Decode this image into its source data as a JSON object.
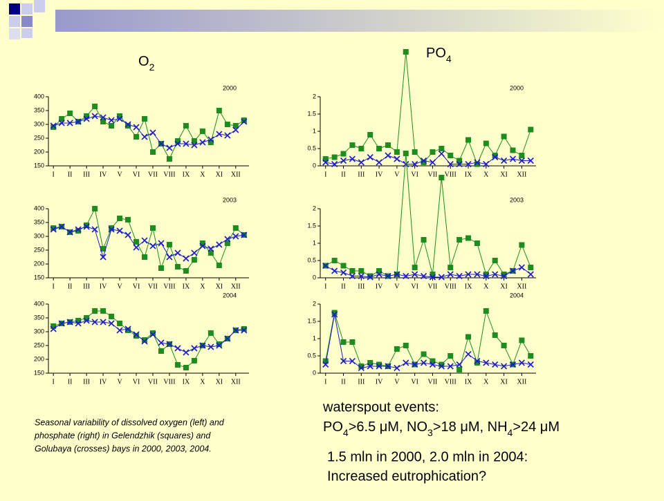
{
  "slide": {
    "o2_heading": [
      "O",
      "2"
    ],
    "po4_heading": [
      "PO",
      "4"
    ],
    "caption": [
      "Seasonal variability of dissolved oxygen (left) and",
      "phosphate (right) in Gelendzhik (squares) and",
      "Golubaya (crosses) bays in 2000, 2003, 2004."
    ],
    "events_title": "waterspout events:",
    "events_line": [
      "PO",
      "4",
      ">6.5 μM, NO",
      "3",
      ">18 μM, NH",
      "4",
      ">24 μM"
    ],
    "conclusion": [
      "1.5 mln in 2000, 2.0 mln in 2004:",
      "Increased eutrophication?"
    ]
  },
  "chart_data": [
    {
      "type": "line",
      "title": "2000",
      "x": [
        1,
        1.5,
        2,
        2.5,
        3,
        3.5,
        4,
        4.5,
        5,
        5.5,
        6,
        6.5,
        7,
        7.5,
        8,
        8.5,
        9,
        9.5,
        10,
        10.5,
        11,
        11.5,
        12,
        12.5
      ],
      "xlim": [
        0.7,
        12.8
      ],
      "xticks": [
        {
          "value": 1,
          "label": "I"
        },
        {
          "value": 2,
          "label": "II"
        },
        {
          "value": 3,
          "label": "III"
        },
        {
          "value": 4,
          "label": "IV"
        },
        {
          "value": 5,
          "label": "V"
        },
        {
          "value": 6,
          "label": "VI"
        },
        {
          "value": 7,
          "label": "VII"
        },
        {
          "value": 8,
          "label": "VIII"
        },
        {
          "value": 9,
          "label": "IX"
        },
        {
          "value": 10,
          "label": "X"
        },
        {
          "value": 11,
          "label": "XI"
        },
        {
          "value": 12,
          "label": "XII"
        }
      ],
      "ylim": [
        150,
        400
      ],
      "yticks": [
        150,
        200,
        250,
        300,
        350,
        400
      ],
      "series": [
        {
          "color": "#1e8c1e",
          "marker": "square",
          "values": [
            290,
            320,
            340,
            310,
            330,
            365,
            310,
            295,
            330,
            295,
            255,
            320,
            200,
            230,
            175,
            240,
            295,
            240,
            275,
            235,
            350,
            300,
            295,
            315
          ]
        },
        {
          "color": "#1c1ccc",
          "marker": "cross",
          "values": [
            295,
            305,
            305,
            310,
            320,
            330,
            325,
            315,
            320,
            300,
            290,
            255,
            270,
            230,
            215,
            230,
            230,
            225,
            235,
            245,
            265,
            260,
            280,
            310
          ]
        }
      ]
    },
    {
      "type": "line",
      "title": "2000",
      "x": [
        1,
        1.5,
        2,
        2.5,
        3,
        3.5,
        4,
        4.5,
        5,
        5.5,
        6,
        6.5,
        7,
        7.5,
        8,
        8.5,
        9,
        9.5,
        10,
        10.5,
        11,
        11.5,
        12,
        12.5
      ],
      "xlim": [
        0.7,
        12.8
      ],
      "xticks": [
        {
          "value": 1,
          "label": "I"
        },
        {
          "value": 2,
          "label": "II"
        },
        {
          "value": 3,
          "label": "III"
        },
        {
          "value": 4,
          "label": "IV"
        },
        {
          "value": 5,
          "label": "V"
        },
        {
          "value": 6,
          "label": "VI"
        },
        {
          "value": 7,
          "label": "VII"
        },
        {
          "value": 8,
          "label": "VIII"
        },
        {
          "value": 9,
          "label": "IX"
        },
        {
          "value": 10,
          "label": "X"
        },
        {
          "value": 11,
          "label": "XI"
        },
        {
          "value": 12,
          "label": "XII"
        }
      ],
      "ylim": [
        0,
        2
      ],
      "yticks": [
        0,
        0.5,
        1,
        1.5,
        2
      ],
      "series": [
        {
          "color": "#1e8c1e",
          "marker": "square",
          "values": [
            0.2,
            0.25,
            0.35,
            0.6,
            0.5,
            0.9,
            0.5,
            0.6,
            0.4,
            3.3,
            0.4,
            0.1,
            0.4,
            0.5,
            0.3,
            0.15,
            0.75,
            0.05,
            0.65,
            0.3,
            0.85,
            0.45,
            0.3,
            1.05
          ]
        },
        {
          "color": "#1c1ccc",
          "marker": "cross",
          "values": [
            0.1,
            0.05,
            0.15,
            0.2,
            0.1,
            0.25,
            0.1,
            0.3,
            0.2,
            0.05,
            0.05,
            0.15,
            0.1,
            0.35,
            0.05,
            0.05,
            0.05,
            0.1,
            0.05,
            0.25,
            0.15,
            0.2,
            0.15,
            0.15
          ]
        }
      ]
    },
    {
      "type": "line",
      "title": "2003",
      "x": [
        1,
        1.5,
        2,
        2.5,
        3,
        3.5,
        4,
        4.5,
        5,
        5.5,
        6,
        6.5,
        7,
        7.5,
        8,
        8.5,
        9,
        9.5,
        10,
        10.5,
        11,
        11.5,
        12,
        12.5
      ],
      "xlim": [
        0.7,
        12.8
      ],
      "xticks": [
        {
          "value": 1,
          "label": "I"
        },
        {
          "value": 2,
          "label": "II"
        },
        {
          "value": 3,
          "label": "III"
        },
        {
          "value": 4,
          "label": "IV"
        },
        {
          "value": 5,
          "label": "V"
        },
        {
          "value": 6,
          "label": "VI"
        },
        {
          "value": 7,
          "label": "VII"
        },
        {
          "value": 8,
          "label": "VIII"
        },
        {
          "value": 9,
          "label": "IX"
        },
        {
          "value": 10,
          "label": "X"
        },
        {
          "value": 11,
          "label": "XI"
        },
        {
          "value": 12,
          "label": "XII"
        }
      ],
      "ylim": [
        150,
        400
      ],
      "yticks": [
        150,
        200,
        250,
        300,
        350,
        400
      ],
      "series": [
        {
          "color": "#1e8c1e",
          "marker": "square",
          "values": [
            330,
            335,
            315,
            320,
            340,
            400,
            255,
            330,
            365,
            360,
            280,
            225,
            330,
            185,
            270,
            190,
            175,
            215,
            275,
            240,
            195,
            275,
            330,
            305
          ]
        },
        {
          "color": "#1c1ccc",
          "marker": "cross",
          "values": [
            325,
            335,
            315,
            325,
            335,
            325,
            225,
            325,
            320,
            305,
            260,
            285,
            265,
            275,
            225,
            240,
            220,
            240,
            265,
            255,
            270,
            290,
            300,
            305
          ]
        }
      ]
    },
    {
      "type": "line",
      "title": "2003",
      "x": [
        1,
        1.5,
        2,
        2.5,
        3,
        3.5,
        4,
        4.5,
        5,
        5.5,
        6,
        6.5,
        7,
        7.5,
        8,
        8.5,
        9,
        9.5,
        10,
        10.5,
        11,
        11.5,
        12,
        12.5
      ],
      "xlim": [
        0.7,
        12.8
      ],
      "xticks": [
        {
          "value": 1,
          "label": "I"
        },
        {
          "value": 2,
          "label": "II"
        },
        {
          "value": 3,
          "label": "III"
        },
        {
          "value": 4,
          "label": "IV"
        },
        {
          "value": 5,
          "label": "V"
        },
        {
          "value": 6,
          "label": "VI"
        },
        {
          "value": 7,
          "label": "VII"
        },
        {
          "value": 8,
          "label": "VIII"
        },
        {
          "value": 9,
          "label": "IX"
        },
        {
          "value": 10,
          "label": "X"
        },
        {
          "value": 11,
          "label": "XI"
        },
        {
          "value": 12,
          "label": "XII"
        }
      ],
      "ylim": [
        0,
        2
      ],
      "yticks": [
        0,
        0.5,
        1,
        1.5,
        2
      ],
      "series": [
        {
          "color": "#1e8c1e",
          "marker": "square",
          "values": [
            0.35,
            0.5,
            0.35,
            0.2,
            0.2,
            0.05,
            0.2,
            0.05,
            0.1,
            3.6,
            0.3,
            1.1,
            0.1,
            2.9,
            0.3,
            1.1,
            1.15,
            1.0,
            0.1,
            0.5,
            0.1,
            0.2,
            0.95,
            0.3
          ]
        },
        {
          "color": "#1c1ccc",
          "marker": "cross",
          "values": [
            0.35,
            0.2,
            0.15,
            0.05,
            0.05,
            0.02,
            0.1,
            0.05,
            0.1,
            0.05,
            0.1,
            0.05,
            0.02,
            0.02,
            0.1,
            0.05,
            0.1,
            0.1,
            0.05,
            0.1,
            0.05,
            0.2,
            0.3,
            0.1
          ]
        }
      ]
    },
    {
      "type": "line",
      "title": "2004",
      "x": [
        1,
        1.5,
        2,
        2.5,
        3,
        3.5,
        4,
        4.5,
        5,
        5.5,
        6,
        6.5,
        7,
        7.5,
        8,
        8.5,
        9,
        9.5,
        10,
        10.5,
        11,
        11.5,
        12,
        12.5
      ],
      "xlim": [
        0.7,
        12.8
      ],
      "xticks": [
        {
          "value": 1,
          "label": "I"
        },
        {
          "value": 2,
          "label": "II"
        },
        {
          "value": 3,
          "label": "III"
        },
        {
          "value": 4,
          "label": "IV"
        },
        {
          "value": 5,
          "label": "V"
        },
        {
          "value": 6,
          "label": "VI"
        },
        {
          "value": 7,
          "label": "VII"
        },
        {
          "value": 8,
          "label": "VIII"
        },
        {
          "value": 9,
          "label": "IX"
        },
        {
          "value": 10,
          "label": "X"
        },
        {
          "value": 11,
          "label": "XI"
        },
        {
          "value": 12,
          "label": "XII"
        }
      ],
      "ylim": [
        150,
        400
      ],
      "yticks": [
        150,
        200,
        250,
        300,
        350,
        400
      ],
      "series": [
        {
          "color": "#1e8c1e",
          "marker": "square",
          "values": [
            320,
            330,
            335,
            340,
            350,
            375,
            375,
            355,
            330,
            305,
            285,
            270,
            295,
            230,
            255,
            180,
            170,
            195,
            250,
            295,
            255,
            275,
            305,
            310
          ]
        },
        {
          "color": "#1c1ccc",
          "marker": "cross",
          "values": [
            310,
            330,
            335,
            330,
            340,
            335,
            335,
            330,
            305,
            310,
            290,
            265,
            290,
            260,
            255,
            240,
            225,
            240,
            250,
            245,
            250,
            275,
            305,
            305
          ]
        }
      ]
    },
    {
      "type": "line",
      "title": "2004",
      "x": [
        1,
        1.5,
        2,
        2.5,
        3,
        3.5,
        4,
        4.5,
        5,
        5.5,
        6,
        6.5,
        7,
        7.5,
        8,
        8.5,
        9,
        9.5,
        10,
        10.5,
        11,
        11.5,
        12,
        12.5
      ],
      "xlim": [
        0.7,
        12.8
      ],
      "xticks": [
        {
          "value": 1,
          "label": "I"
        },
        {
          "value": 2,
          "label": "II"
        },
        {
          "value": 3,
          "label": "III"
        },
        {
          "value": 4,
          "label": "IV"
        },
        {
          "value": 5,
          "label": "V"
        },
        {
          "value": 6,
          "label": "VI"
        },
        {
          "value": 7,
          "label": "VII"
        },
        {
          "value": 8,
          "label": "VIII"
        },
        {
          "value": 9,
          "label": "IX"
        },
        {
          "value": 10,
          "label": "X"
        },
        {
          "value": 11,
          "label": "XI"
        },
        {
          "value": 12,
          "label": "XII"
        }
      ],
      "ylim": [
        0,
        2
      ],
      "yticks": [
        0,
        0.5,
        1,
        1.5,
        2
      ],
      "series": [
        {
          "color": "#1e8c1e",
          "marker": "square",
          "values": [
            0.35,
            1.75,
            0.9,
            0.9,
            0.2,
            0.3,
            0.25,
            0.2,
            0.7,
            0.8,
            0.25,
            0.55,
            0.35,
            0.25,
            0.5,
            0.1,
            1.05,
            0.3,
            1.8,
            1.1,
            0.8,
            0.25,
            0.95,
            0.5
          ]
        },
        {
          "color": "#1c1ccc",
          "marker": "cross",
          "values": [
            0.25,
            1.7,
            0.35,
            0.35,
            0.15,
            0.2,
            0.2,
            0.2,
            0.15,
            0.3,
            0.25,
            0.3,
            0.25,
            0.2,
            0.2,
            0.25,
            0.55,
            0.35,
            0.3,
            0.25,
            0.2,
            0.25,
            0.3,
            0.25
          ]
        }
      ]
    }
  ]
}
